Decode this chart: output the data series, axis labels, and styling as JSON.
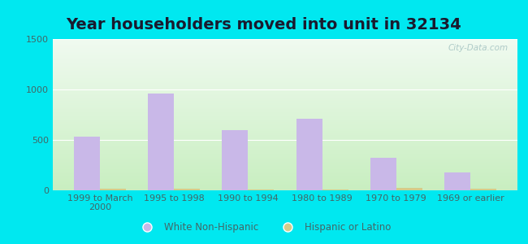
{
  "title": "Year householders moved into unit in 32134",
  "categories": [
    "1999 to March\n2000",
    "1995 to 1998",
    "1990 to 1994",
    "1980 to 1989",
    "1970 to 1979",
    "1969 or earlier"
  ],
  "white_values": [
    535,
    963,
    600,
    710,
    325,
    175
  ],
  "hispanic_values": [
    18,
    18,
    10,
    10,
    28,
    15
  ],
  "white_color": "#c9b8e8",
  "hispanic_color": "#d4cc8a",
  "bar_width": 0.35,
  "ylim": [
    0,
    1500
  ],
  "yticks": [
    0,
    500,
    1000,
    1500
  ],
  "bg_outer": "#00e8f0",
  "watermark": "City-Data.com",
  "legend_labels": [
    "White Non-Hispanic",
    "Hispanic or Latino"
  ],
  "title_fontsize": 14,
  "tick_fontsize": 8,
  "tick_color": "#446666",
  "title_color": "#1a1a2e"
}
